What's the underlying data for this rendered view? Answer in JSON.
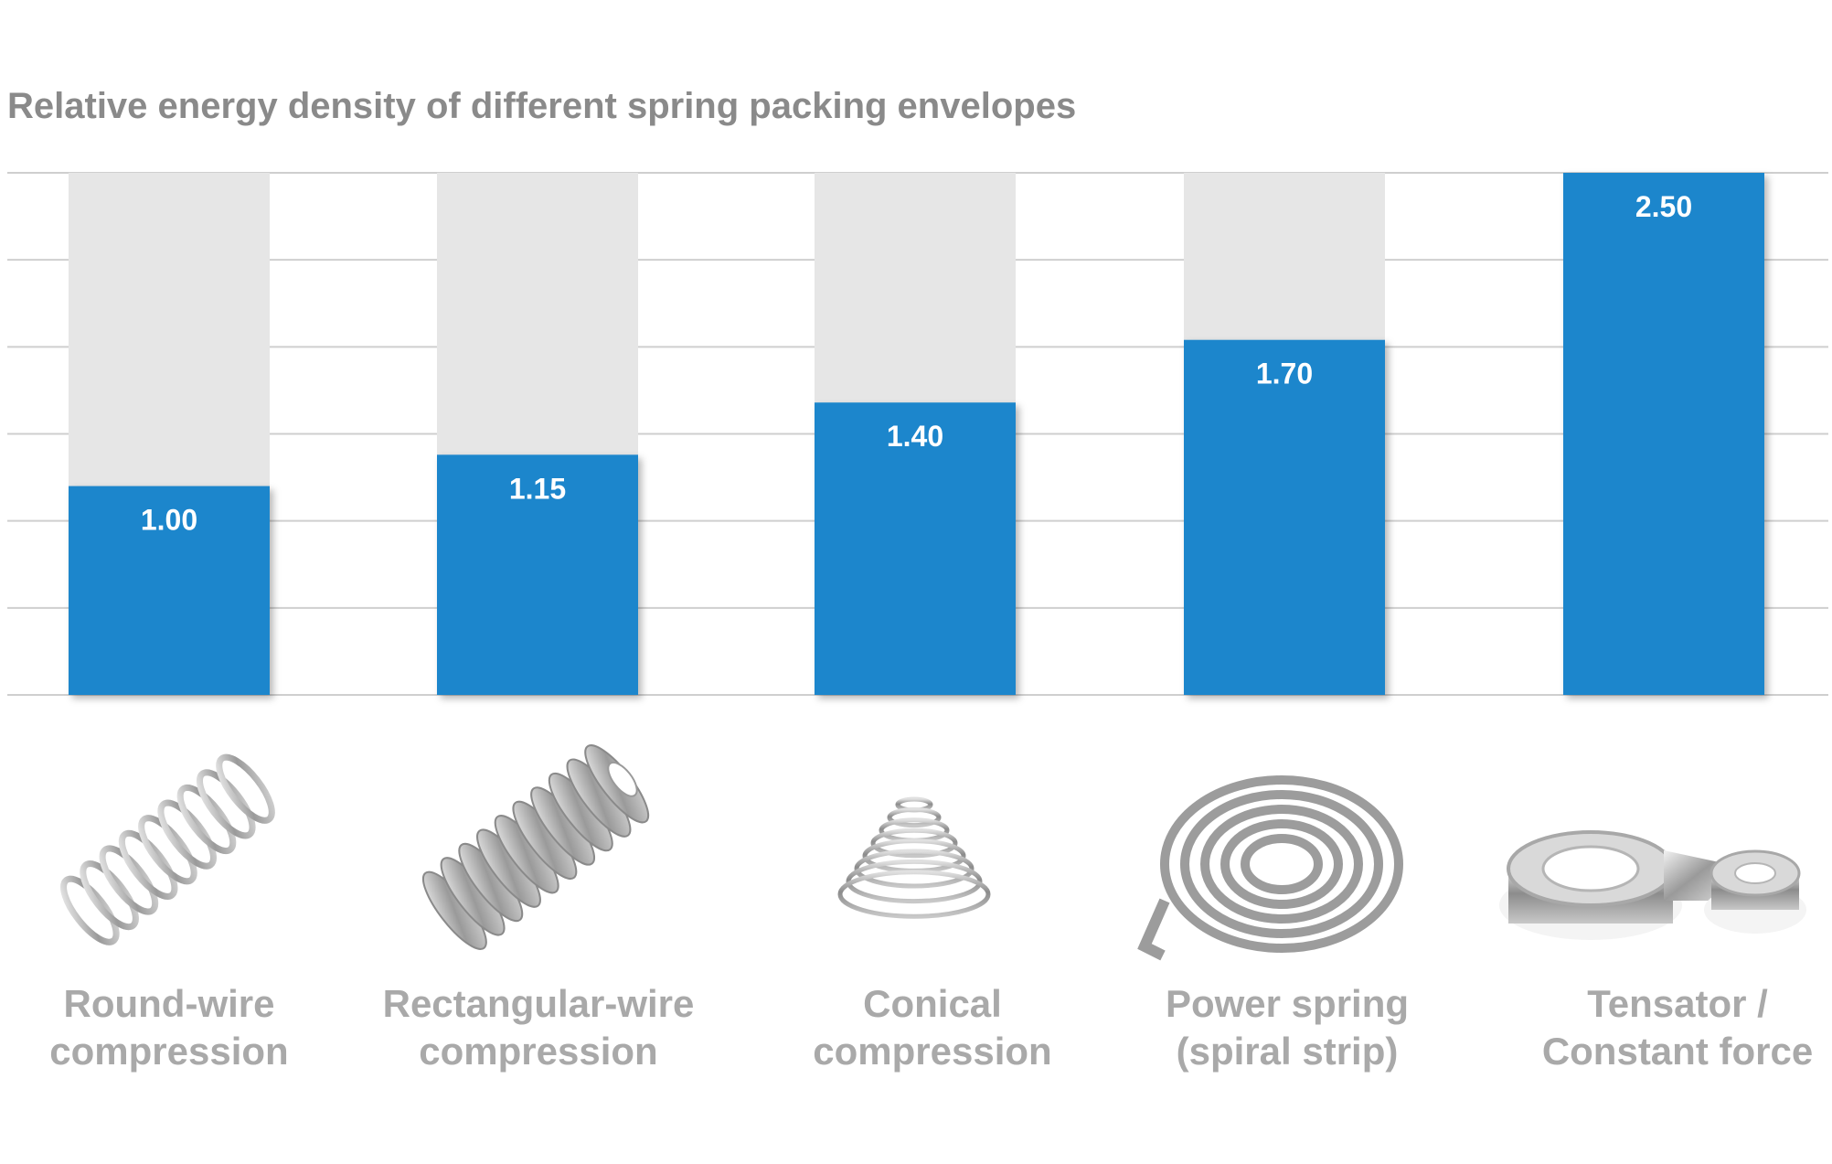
{
  "chart_data": {
    "type": "bar",
    "title": "Relative energy density of different spring packing envelopes",
    "xlabel": "",
    "ylabel": "",
    "ylim": [
      0,
      2.5
    ],
    "grid": true,
    "categories": [
      {
        "line1": "Round-wire",
        "line2": "compression"
      },
      {
        "line1": "Rectangular-wire",
        "line2": "compression"
      },
      {
        "line1": "Conical",
        "line2": "compression"
      },
      {
        "line1": "Power spring",
        "line2": "(spiral strip)"
      },
      {
        "line1": "Tensator /",
        "line2": "Constant force"
      }
    ],
    "values": [
      1.0,
      1.15,
      1.4,
      1.7,
      2.5
    ],
    "value_labels": [
      "1.00",
      "1.15",
      "1.40",
      "1.70",
      "2.50"
    ],
    "icons": [
      "round-wire-spring-icon",
      "rectangular-wire-spring-icon",
      "conical-spring-icon",
      "power-spring-icon",
      "constant-force-spring-icon"
    ],
    "colors": {
      "bar": "#1a86cc",
      "track": "#e6e6e6",
      "grid": "#cfcfcf",
      "label": "#a9a9a9",
      "title": "#8a8a8a"
    }
  }
}
